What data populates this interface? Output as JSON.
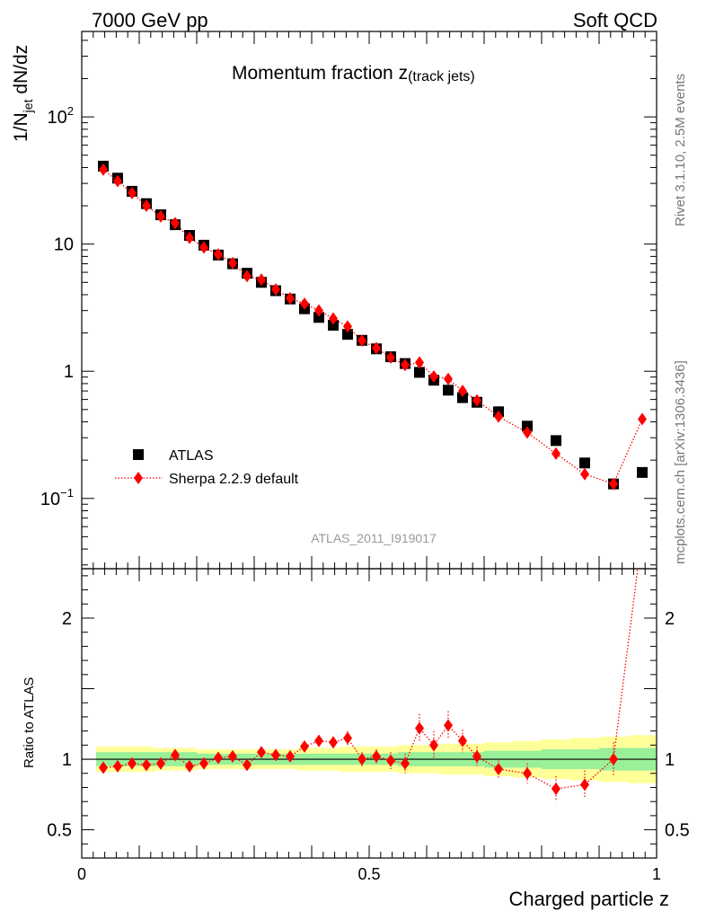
{
  "header": {
    "left": "7000 GeV pp",
    "right": "Soft QCD"
  },
  "side_labels": {
    "rivet": "Rivet 3.1.10,  2.5M events",
    "mcplots": "mcplots.cern.ch [arXiv:1306.3436]"
  },
  "chart_data": {
    "type": "scatter",
    "title_main": "Momentum fraction ",
    "title_var": "z",
    "title_sub": "(track jets)",
    "analysis_id": "ATLAS_2011_I919017",
    "ylabel_main": "1/N",
    "ylabel_sub": "jet",
    "ylabel_tail": " dN/dz",
    "ratio_ylabel": "Ratio to ATLAS",
    "xlabel": "Charged particle z",
    "xlim": [
      0,
      1
    ],
    "ylim": [
      0.028,
      470
    ],
    "yscale": "log",
    "ratio_ylim": [
      0.3,
      2.35
    ],
    "x_ticks": [
      {
        "v": 0,
        "label": "0"
      },
      {
        "v": 0.5,
        "label": "0.5"
      },
      {
        "v": 1,
        "label": "1"
      }
    ],
    "y_ticks": [
      {
        "v": 0.1,
        "base": "10",
        "exp": "−1"
      },
      {
        "v": 1,
        "base": "1",
        "exp": ""
      },
      {
        "v": 10,
        "base": "10",
        "exp": ""
      },
      {
        "v": 100,
        "base": "10",
        "exp": "2"
      }
    ],
    "ratio_ticks": [
      {
        "v": 0.5,
        "label": "0.5"
      },
      {
        "v": 1,
        "label": "1"
      },
      {
        "v": 2,
        "label": "2"
      }
    ],
    "legend": [
      {
        "name": "ATLAS",
        "marker": "square",
        "color": "#000000"
      },
      {
        "name": "Sherpa 2.2.9 default",
        "marker": "diamond",
        "color": "#ff0000",
        "line": "dotted"
      }
    ],
    "bins": [
      {
        "lo": 0.025,
        "hi": 0.05
      },
      {
        "lo": 0.05,
        "hi": 0.075
      },
      {
        "lo": 0.075,
        "hi": 0.1
      },
      {
        "lo": 0.1,
        "hi": 0.125
      },
      {
        "lo": 0.125,
        "hi": 0.15
      },
      {
        "lo": 0.15,
        "hi": 0.175
      },
      {
        "lo": 0.175,
        "hi": 0.2
      },
      {
        "lo": 0.2,
        "hi": 0.225
      },
      {
        "lo": 0.225,
        "hi": 0.25
      },
      {
        "lo": 0.25,
        "hi": 0.275
      },
      {
        "lo": 0.275,
        "hi": 0.3
      },
      {
        "lo": 0.3,
        "hi": 0.325
      },
      {
        "lo": 0.325,
        "hi": 0.35
      },
      {
        "lo": 0.35,
        "hi": 0.375
      },
      {
        "lo": 0.375,
        "hi": 0.4
      },
      {
        "lo": 0.4,
        "hi": 0.425
      },
      {
        "lo": 0.425,
        "hi": 0.45
      },
      {
        "lo": 0.45,
        "hi": 0.475
      },
      {
        "lo": 0.475,
        "hi": 0.5
      },
      {
        "lo": 0.5,
        "hi": 0.525
      },
      {
        "lo": 0.525,
        "hi": 0.55
      },
      {
        "lo": 0.55,
        "hi": 0.575
      },
      {
        "lo": 0.575,
        "hi": 0.6
      },
      {
        "lo": 0.6,
        "hi": 0.625
      },
      {
        "lo": 0.625,
        "hi": 0.65
      },
      {
        "lo": 0.65,
        "hi": 0.675
      },
      {
        "lo": 0.675,
        "hi": 0.7
      },
      {
        "lo": 0.7,
        "hi": 0.75
      },
      {
        "lo": 0.75,
        "hi": 0.8
      },
      {
        "lo": 0.8,
        "hi": 0.85
      },
      {
        "lo": 0.85,
        "hi": 0.9
      },
      {
        "lo": 0.9,
        "hi": 0.95
      },
      {
        "lo": 0.95,
        "hi": 1.0
      }
    ],
    "series": [
      {
        "name": "ATLAS",
        "x": [
          0.0375,
          0.0625,
          0.0875,
          0.1125,
          0.1375,
          0.1625,
          0.1875,
          0.2125,
          0.2375,
          0.2625,
          0.2875,
          0.3125,
          0.3375,
          0.3625,
          0.3875,
          0.4125,
          0.4375,
          0.4625,
          0.4875,
          0.5125,
          0.5375,
          0.5625,
          0.5875,
          0.6125,
          0.6375,
          0.6625,
          0.6875,
          0.725,
          0.775,
          0.825,
          0.875,
          0.925,
          0.975
        ],
        "y": [
          41,
          33,
          26,
          20.8,
          17,
          14.2,
          11.7,
          9.8,
          8.2,
          7.0,
          5.9,
          5.0,
          4.3,
          3.7,
          3.1,
          2.65,
          2.3,
          1.95,
          1.75,
          1.5,
          1.3,
          1.15,
          0.98,
          0.85,
          0.71,
          0.62,
          0.57,
          0.48,
          0.37,
          0.285,
          0.19,
          0.13,
          0.16
        ]
      },
      {
        "name": "Sherpa 2.2.9 default",
        "x": [
          0.0375,
          0.0625,
          0.0875,
          0.1125,
          0.1375,
          0.1625,
          0.1875,
          0.2125,
          0.2375,
          0.2625,
          0.2875,
          0.3125,
          0.3375,
          0.3625,
          0.3875,
          0.4125,
          0.4375,
          0.4625,
          0.4875,
          0.5125,
          0.5375,
          0.5625,
          0.5875,
          0.6125,
          0.6375,
          0.6625,
          0.6875,
          0.725,
          0.775,
          0.825,
          0.875,
          0.925,
          0.975
        ],
        "y": [
          38.5,
          31.3,
          25.2,
          20.0,
          16.5,
          14.6,
          11.2,
          9.4,
          8.3,
          7.1,
          5.6,
          5.25,
          4.4,
          3.75,
          3.4,
          3.0,
          2.6,
          2.25,
          1.74,
          1.52,
          1.28,
          1.12,
          1.17,
          0.91,
          0.87,
          0.7,
          0.59,
          0.44,
          0.33,
          0.225,
          0.155,
          0.13,
          0.42
        ]
      }
    ],
    "ratio": {
      "x": [
        0.0375,
        0.0625,
        0.0875,
        0.1125,
        0.1375,
        0.1625,
        0.1875,
        0.2125,
        0.2375,
        0.2625,
        0.2875,
        0.3125,
        0.3375,
        0.3625,
        0.3875,
        0.4125,
        0.4375,
        0.4625,
        0.4875,
        0.5125,
        0.5375,
        0.5625,
        0.5875,
        0.6125,
        0.6375,
        0.6625,
        0.6875,
        0.725,
        0.775,
        0.825,
        0.875,
        0.925,
        0.975
      ],
      "y": [
        0.94,
        0.95,
        0.97,
        0.96,
        0.97,
        1.03,
        0.95,
        0.97,
        1.01,
        1.02,
        0.96,
        1.05,
        1.03,
        1.02,
        1.09,
        1.13,
        1.12,
        1.15,
        1.0,
        1.02,
        0.99,
        0.97,
        1.22,
        1.1,
        1.24,
        1.13,
        1.02,
        0.93,
        0.9,
        0.79,
        0.82,
        1.0,
        2.6
      ],
      "err": [
        0.02,
        0.02,
        0.02,
        0.02,
        0.02,
        0.02,
        0.02,
        0.02,
        0.02,
        0.02,
        0.02,
        0.03,
        0.03,
        0.03,
        0.03,
        0.04,
        0.04,
        0.05,
        0.05,
        0.05,
        0.06,
        0.07,
        0.1,
        0.1,
        0.1,
        0.08,
        0.07,
        0.06,
        0.07,
        0.09,
        0.1,
        0.12,
        0.3
      ],
      "band_inner": [
        0.05,
        0.05,
        0.05,
        0.05,
        0.05,
        0.05,
        0.05,
        0.04,
        0.04,
        0.04,
        0.04,
        0.04,
        0.04,
        0.04,
        0.04,
        0.04,
        0.04,
        0.04,
        0.04,
        0.04,
        0.04,
        0.05,
        0.05,
        0.05,
        0.05,
        0.05,
        0.05,
        0.06,
        0.06,
        0.07,
        0.07,
        0.08,
        0.08
      ],
      "band_outer": [
        0.09,
        0.09,
        0.09,
        0.09,
        0.08,
        0.08,
        0.08,
        0.07,
        0.07,
        0.07,
        0.07,
        0.07,
        0.07,
        0.07,
        0.08,
        0.08,
        0.08,
        0.09,
        0.09,
        0.09,
        0.09,
        0.1,
        0.1,
        0.1,
        0.11,
        0.11,
        0.11,
        0.12,
        0.13,
        0.14,
        0.15,
        0.16,
        0.17
      ]
    }
  }
}
